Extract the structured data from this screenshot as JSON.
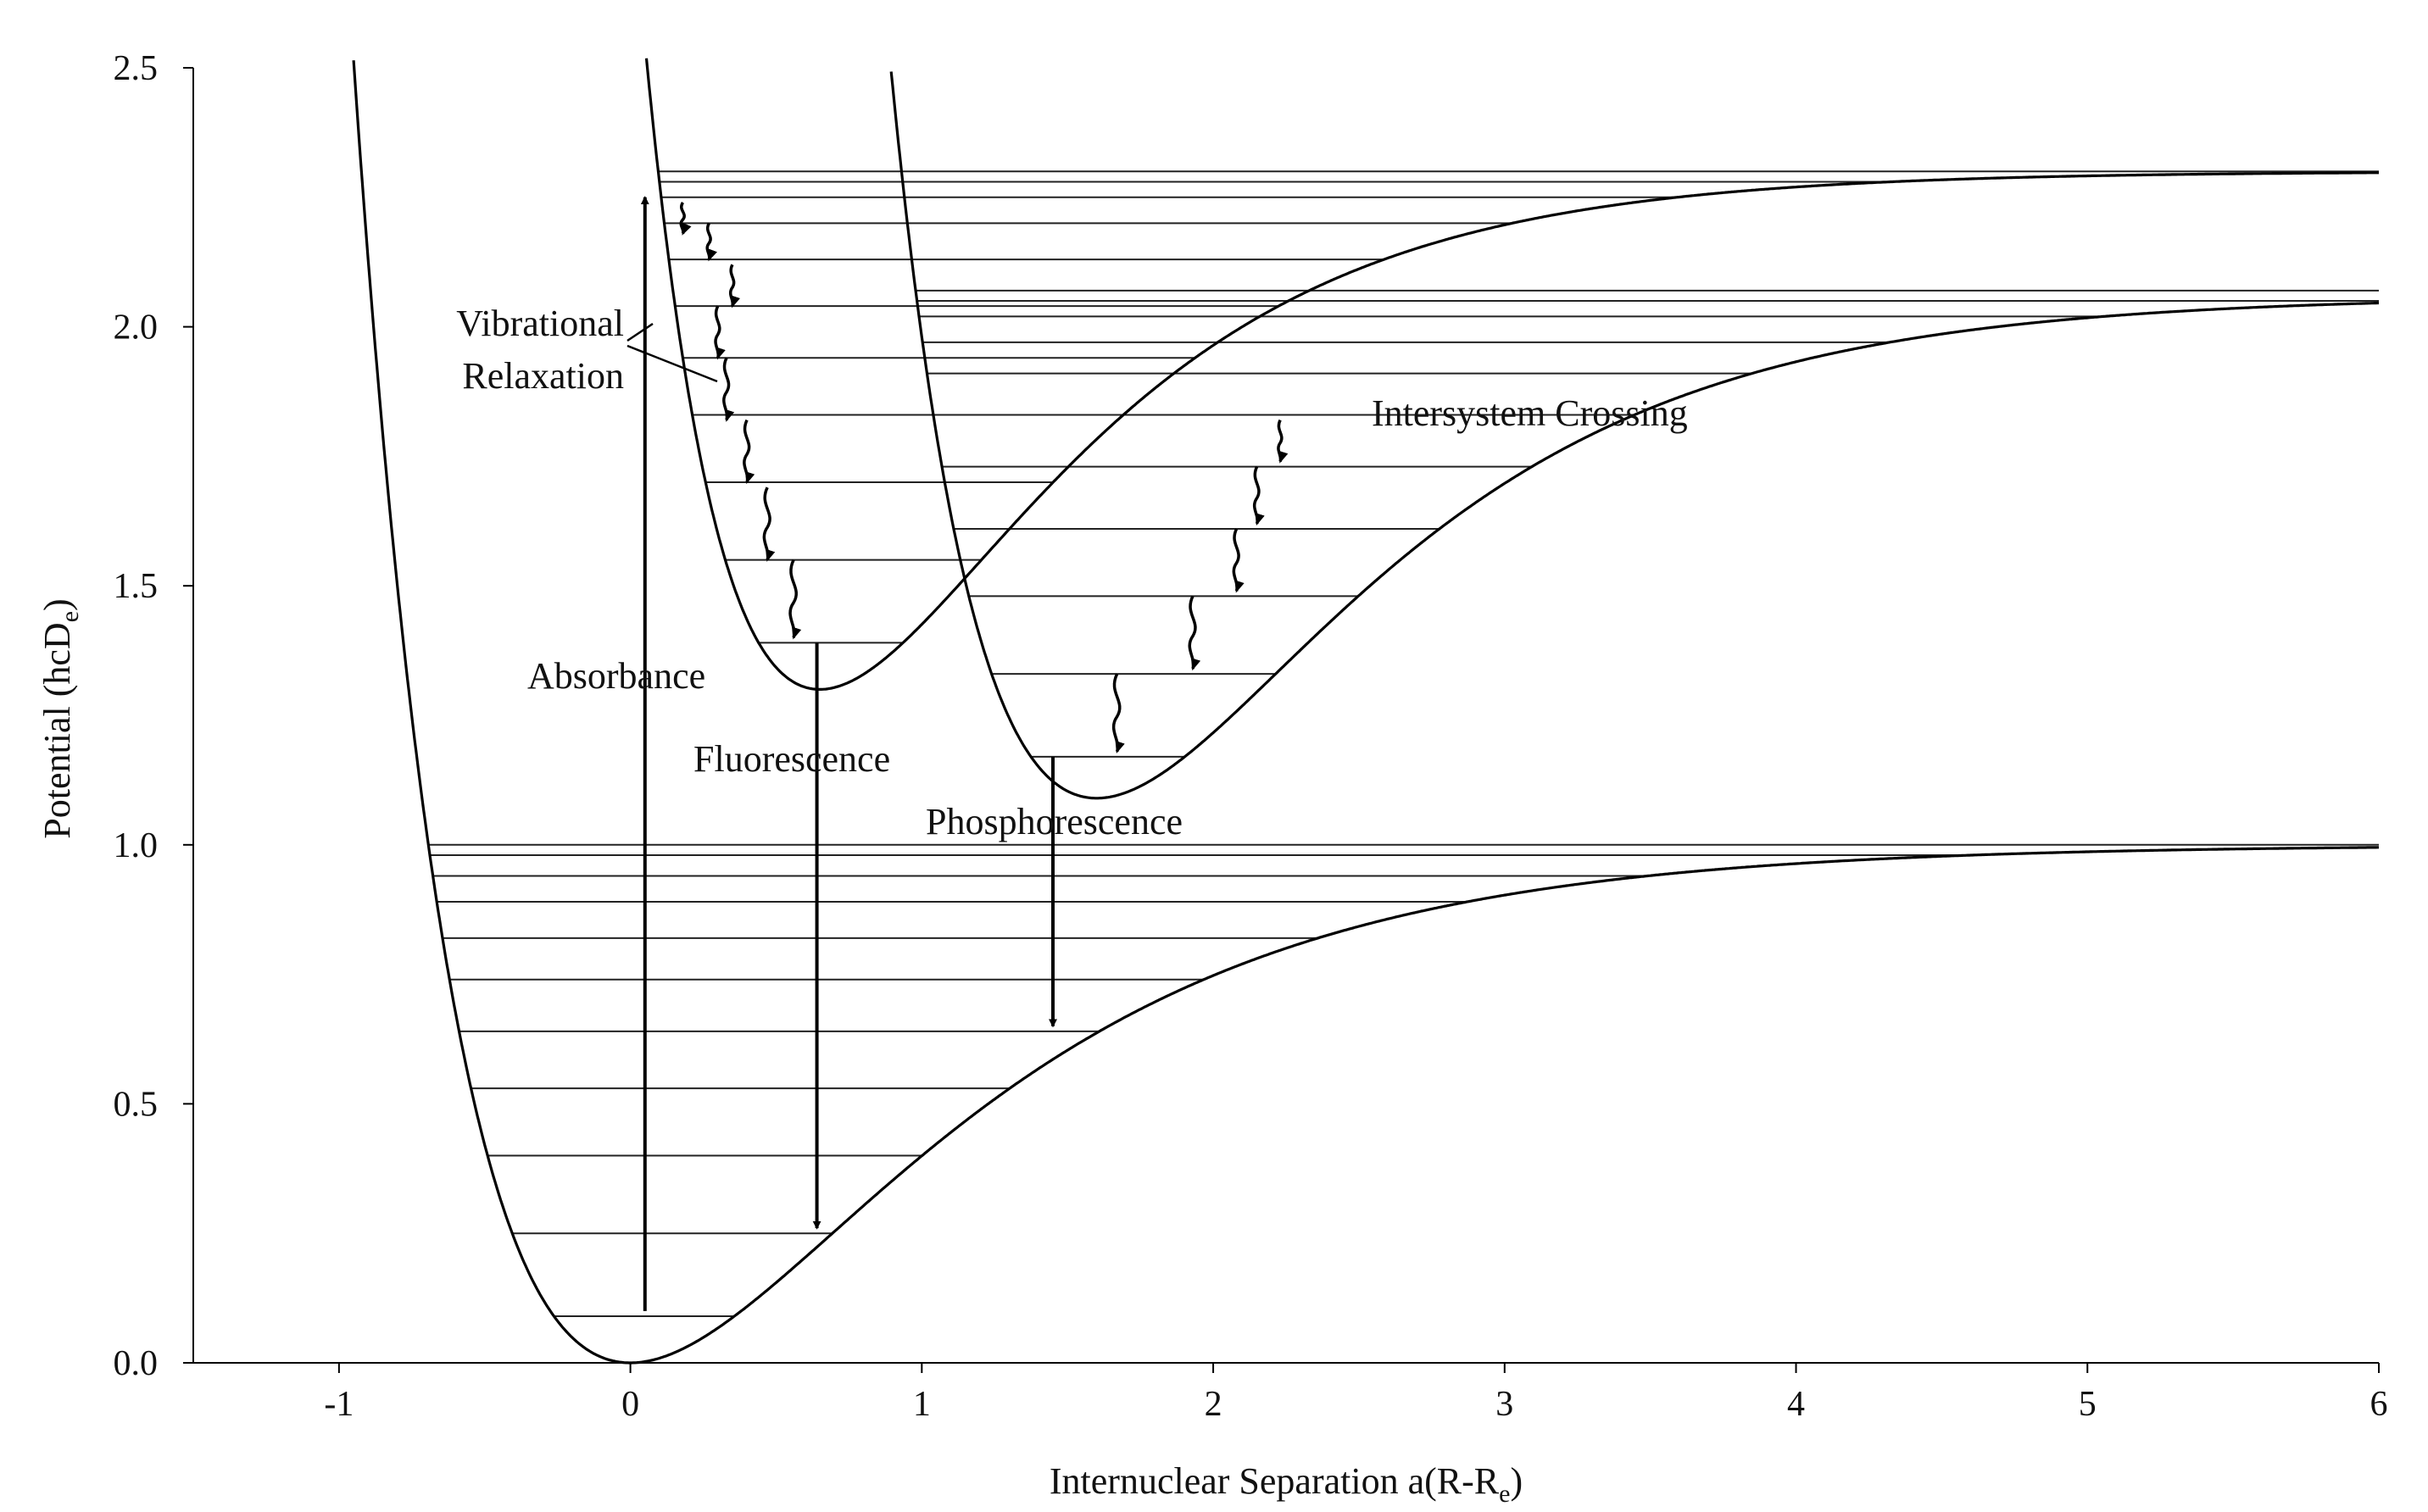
{
  "chart_data": {
    "type": "line",
    "x_ticks": [
      "-1",
      "0",
      "1",
      "2",
      "3",
      "4",
      "5",
      "6"
    ],
    "y_ticks": [
      "0.0",
      "0.5",
      "1.0",
      "1.5",
      "2.0",
      "2.5"
    ],
    "xlim": [
      -1.5,
      6
    ],
    "ylim": [
      0,
      2.5
    ],
    "xlabel": {
      "main": "Internuclear Separation  a(R-R",
      "sub": "e",
      "close": ")"
    },
    "ylabel": {
      "main": "Potential  (hcD",
      "sub": "e",
      "close": ")"
    },
    "grid": false,
    "curves": [
      {
        "name": "ground",
        "De": 1.0,
        "offset": 0.0,
        "re": 0.0,
        "a": 1.0
      },
      {
        "name": "singlet",
        "De": 1.0,
        "offset": 1.3,
        "re": 0.65,
        "a": 1.25
      },
      {
        "name": "triplet",
        "De": 0.97,
        "offset": 1.09,
        "re": 1.6,
        "a": 1.12
      }
    ],
    "vibrational_levels": [
      {
        "curve": "ground",
        "energies": [
          0.09,
          0.25,
          0.4,
          0.53,
          0.64,
          0.74,
          0.82,
          0.89,
          0.94,
          0.98,
          1.0
        ]
      },
      {
        "curve": "singlet",
        "energies": [
          1.39,
          1.55,
          1.7,
          1.83,
          1.94,
          2.04,
          2.13,
          2.2,
          2.25,
          2.28,
          2.3
        ]
      },
      {
        "curve": "triplet",
        "energies": [
          1.17,
          1.33,
          1.48,
          1.61,
          1.73,
          1.83,
          1.91,
          1.97,
          2.02,
          2.05,
          2.07
        ]
      }
    ],
    "transitions": {
      "absorbance": {
        "x": 0.05,
        "y_from": 0.1,
        "y_to": 2.25
      },
      "fluorescence": {
        "x": 0.64,
        "y_from": 1.39,
        "y_to": 0.26
      },
      "phosphorescence": {
        "x": 1.45,
        "y_from": 1.17,
        "y_to": 0.65
      },
      "singlet_relaxation": [
        {
          "x": 0.18,
          "y_from": 2.24,
          "y_to": 2.18
        },
        {
          "x": 0.27,
          "y_from": 2.2,
          "y_to": 2.13
        },
        {
          "x": 0.35,
          "y_from": 2.12,
          "y_to": 2.04
        },
        {
          "x": 0.3,
          "y_from": 2.04,
          "y_to": 1.94
        },
        {
          "x": 0.33,
          "y_from": 1.94,
          "y_to": 1.82
        },
        {
          "x": 0.4,
          "y_from": 1.82,
          "y_to": 1.7
        },
        {
          "x": 0.47,
          "y_from": 1.69,
          "y_to": 1.55
        },
        {
          "x": 0.56,
          "y_from": 1.55,
          "y_to": 1.4
        }
      ],
      "triplet_relaxation": [
        {
          "x": 2.23,
          "y_from": 1.82,
          "y_to": 1.74
        },
        {
          "x": 2.15,
          "y_from": 1.73,
          "y_to": 1.62
        },
        {
          "x": 2.08,
          "y_from": 1.61,
          "y_to": 1.49
        },
        {
          "x": 1.93,
          "y_from": 1.48,
          "y_to": 1.34
        },
        {
          "x": 1.67,
          "y_from": 1.33,
          "y_to": 1.18
        }
      ]
    },
    "annotations": {
      "vibrational": "Vibrational",
      "relaxation": "Relaxation",
      "intersystem": "Intersystem Crossing",
      "absorbance": "Absorbance",
      "fluorescence": "Fluorescence",
      "phosphorescence": "Phosphorescence"
    },
    "colors": {
      "line": "#000000",
      "level": "#222222",
      "text": "#111111"
    }
  }
}
